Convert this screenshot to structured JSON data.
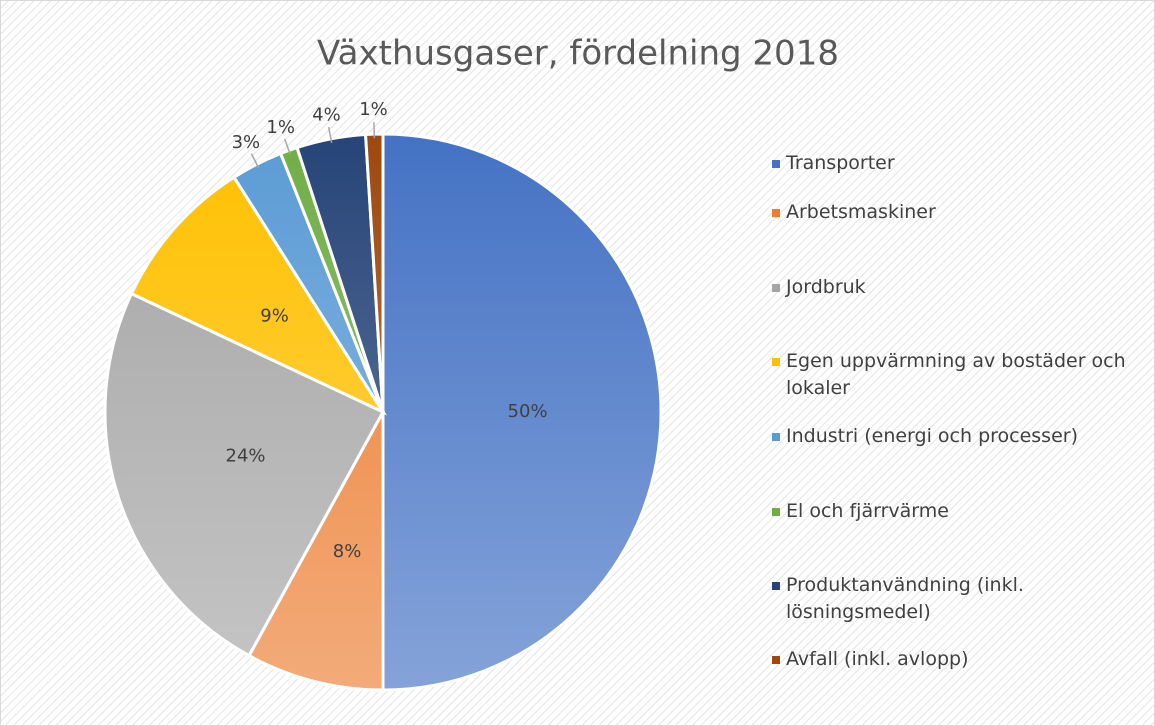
{
  "chart_data": {
    "type": "pie",
    "title": "Växthusgaser, fördelning 2018",
    "categories": [
      "Transporter",
      "Arbetsmaskiner",
      "Jordbruk",
      "Egen uppvärmning av bostäder och lokaler",
      "Industri (energi och processer)",
      "El och fjärrvärme",
      "Produktanvändning (inkl. lösningsmedel)",
      "Avfall (inkl. avlopp)"
    ],
    "values": [
      50,
      8,
      24,
      9,
      3,
      1,
      4,
      1
    ],
    "value_labels": [
      "50%",
      "8%",
      "24%",
      "9%",
      "3%",
      "1%",
      "4%",
      "1%"
    ],
    "colors": [
      "#4472c4",
      "#ed7d31",
      "#a5a5a5",
      "#ffc000",
      "#5b9bd5",
      "#70ad47",
      "#264478",
      "#9e480e"
    ],
    "legend": "right"
  }
}
